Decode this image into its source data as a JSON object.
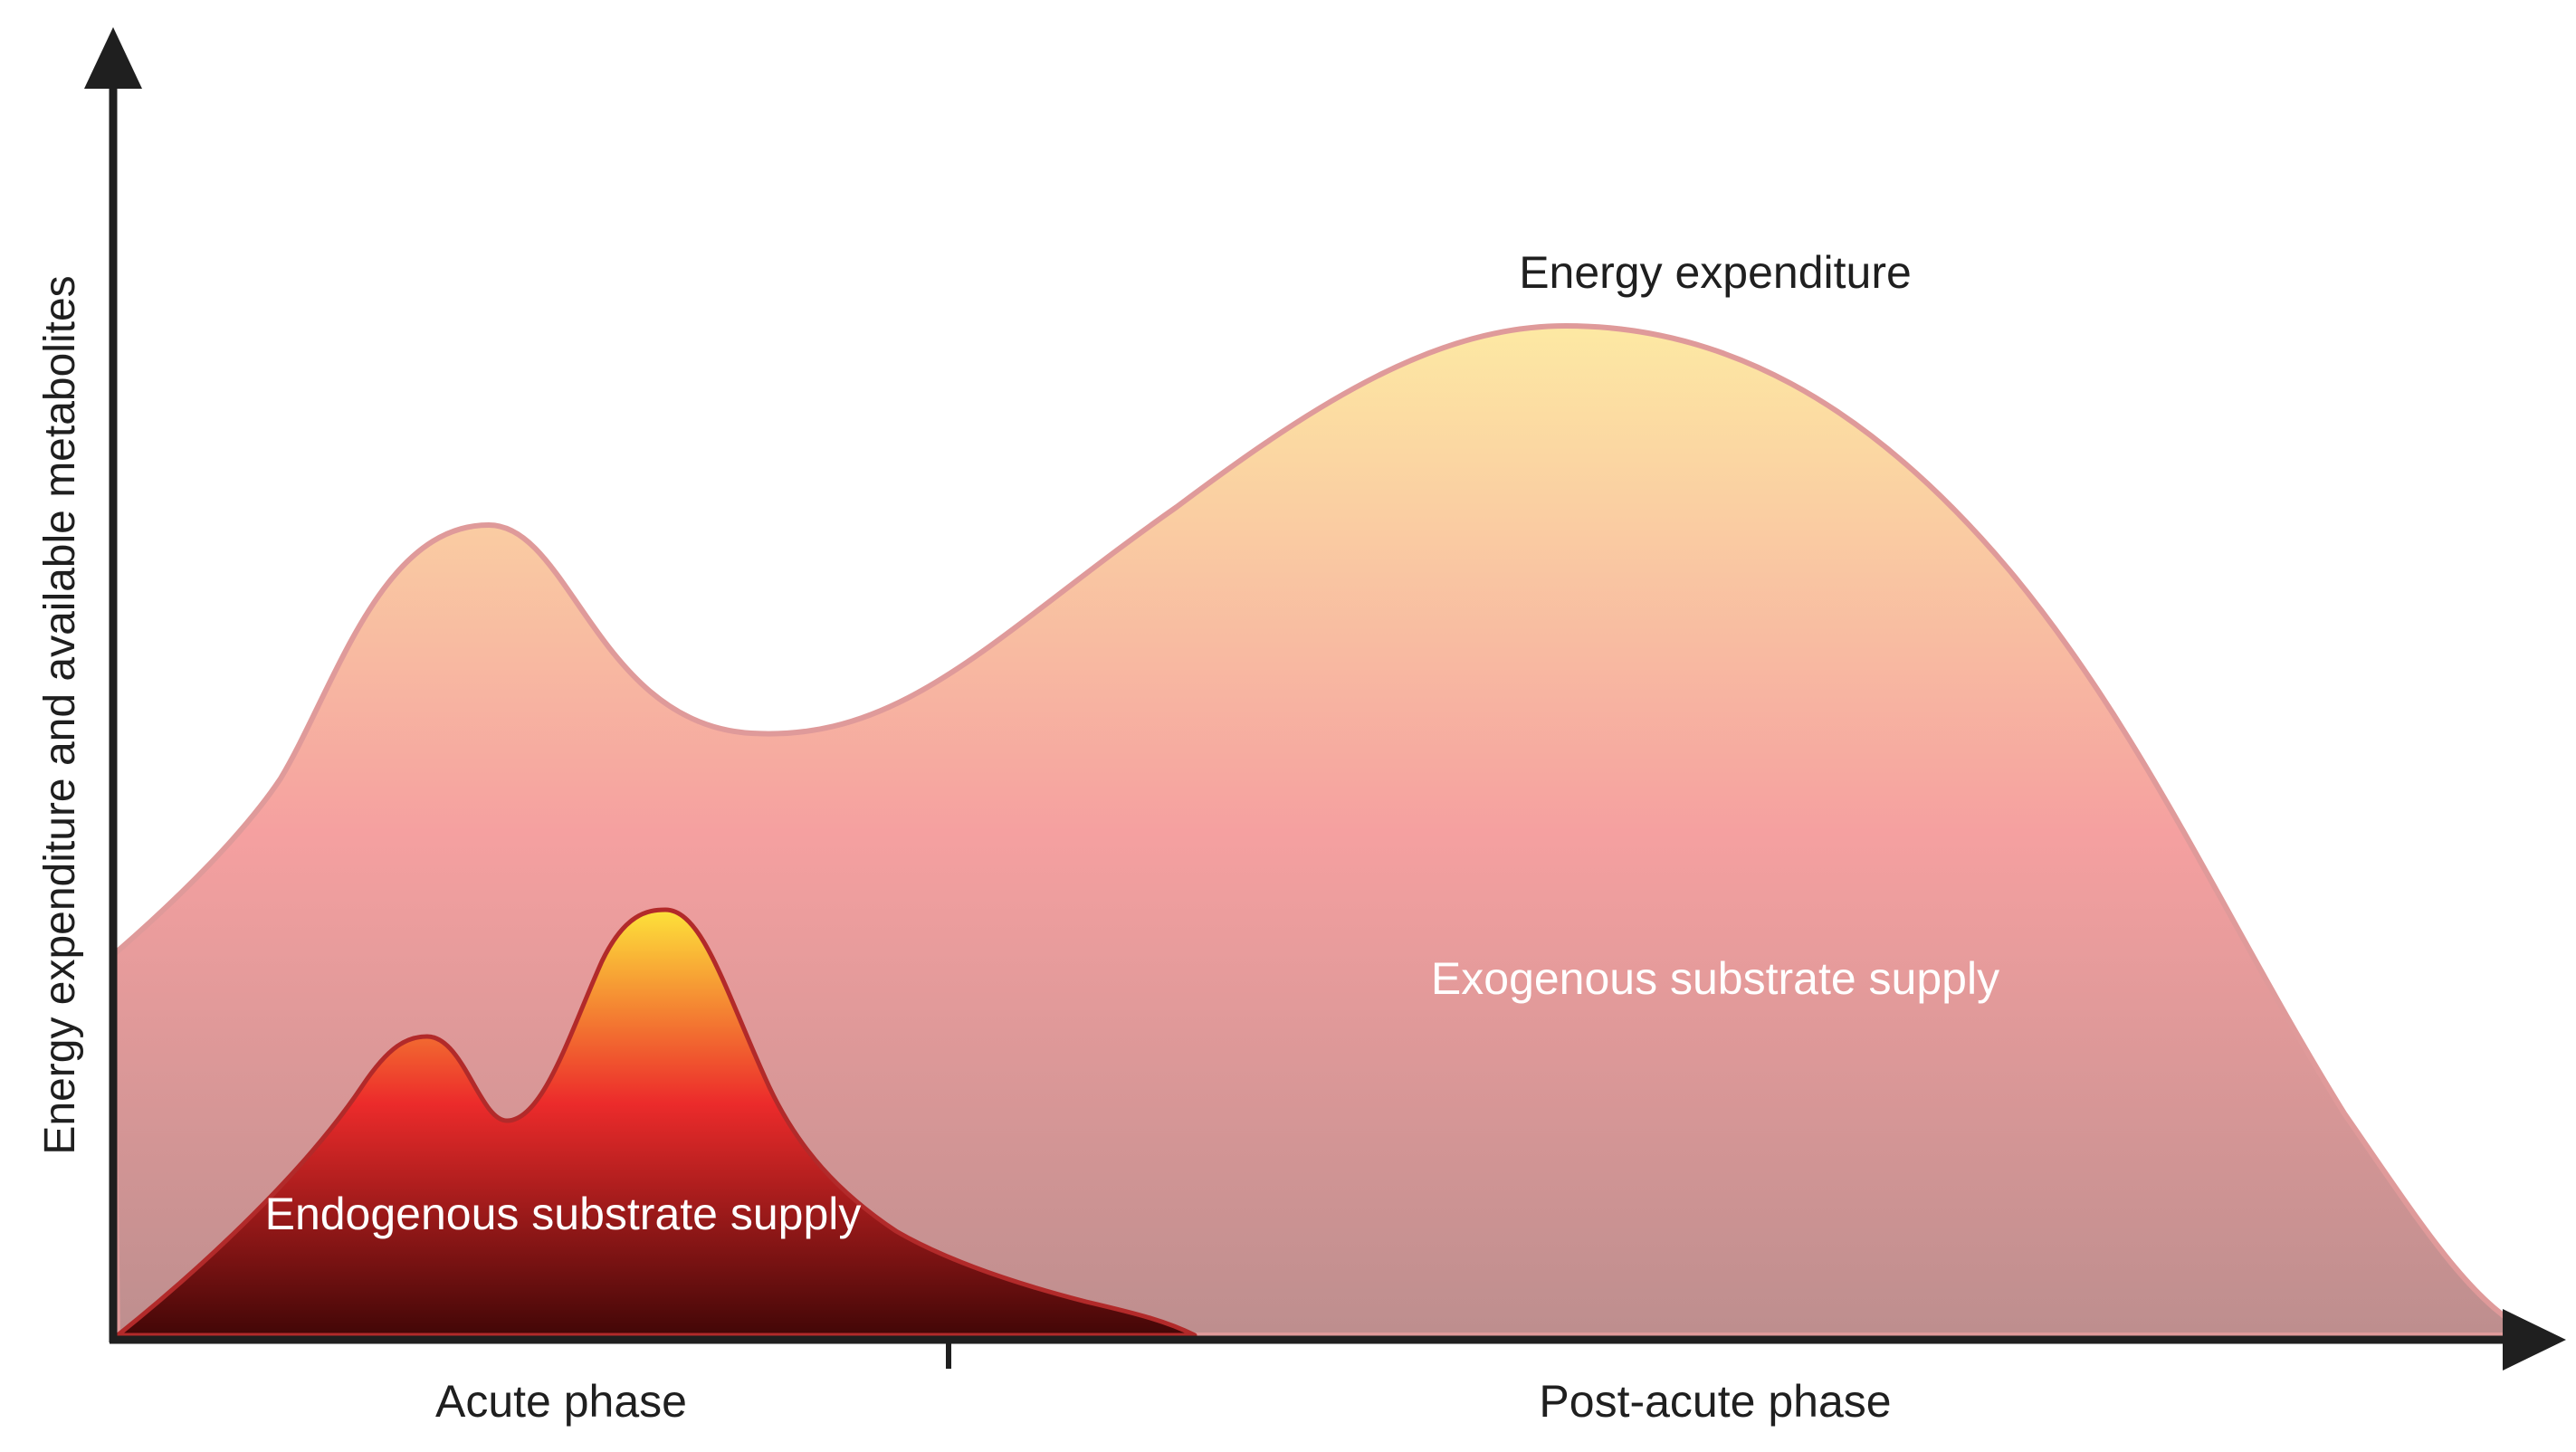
{
  "labels": {
    "y_axis": "Energy expenditure and available metabolites",
    "curve_top": "Energy expenditure",
    "exogenous": "Exogenous substrate supply",
    "endogenous": "Endogenous substrate supply",
    "x_acute": "Acute phase",
    "x_post": "Post-acute phase"
  },
  "colors": {
    "axis": "#1f1f1f",
    "expenditure_top": "#fde9a3",
    "expenditure_mid": "#f5a0a0",
    "expenditure_bottom": "#bd8e8e",
    "expenditure_outline": "#df9a9a",
    "endogenous_top": "#fde23a",
    "endogenous_mid": "#ec2b2b",
    "endogenous_bottom": "#3f0606",
    "endogenous_outline": "#b22a2a",
    "label_dark": "#1f1f1f",
    "label_light": "#ffffff"
  }
}
